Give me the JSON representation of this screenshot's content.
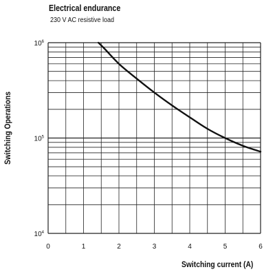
{
  "chart_data": {
    "type": "line",
    "title": "Electrical endurance",
    "subtitle": "230 V AC resistive load",
    "xlabel": "Switching current (A)",
    "ylabel": "Switching Operations",
    "x_scale": "linear",
    "y_scale": "log",
    "xlim": [
      0,
      6
    ],
    "ylim": [
      10000,
      1000000
    ],
    "x_ticks": [
      "0",
      "1",
      "2",
      "3",
      "4",
      "5",
      "6"
    ],
    "y_ticks": [
      {
        "base": "10",
        "exp": "6"
      },
      {
        "base": "10",
        "exp": "5"
      },
      {
        "base": "10",
        "exp": "4"
      }
    ],
    "grid": true,
    "series": [
      {
        "x": [
          1.42,
          1.6,
          2.0,
          2.5,
          3.0,
          3.5,
          4.0,
          4.5,
          5.0,
          5.5,
          6.0
        ],
        "y": [
          1000000,
          860000,
          600000,
          420000,
          300000,
          220000,
          165000,
          125000,
          100000,
          83000,
          72000
        ]
      }
    ]
  }
}
